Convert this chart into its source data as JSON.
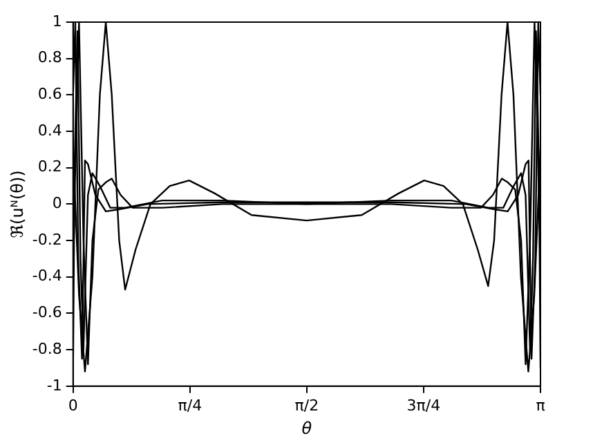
{
  "chart_data": {
    "type": "line",
    "xlabel": "θ",
    "ylabel": "ℜ(uᴺ(θ))",
    "xlim": [
      0,
      3.1416
    ],
    "ylim": [
      -1,
      1
    ],
    "xticks": [
      {
        "value": 0,
        "label": "0"
      },
      {
        "value": 0.7854,
        "label": "π/4"
      },
      {
        "value": 1.5708,
        "label": "π/2"
      },
      {
        "value": 2.3562,
        "label": "3π/4"
      },
      {
        "value": 3.1416,
        "label": "π"
      }
    ],
    "yticks": [
      -1,
      -0.8,
      -0.6,
      -0.4,
      -0.2,
      0,
      0.2,
      0.4,
      0.6,
      0.8,
      1
    ],
    "grid": false,
    "legend": false,
    "marker": "none",
    "line_style": "solid",
    "series": [
      {
        "color": "#000000",
        "x": [
          0,
          0.04,
          0.08,
          0.13,
          0.18,
          0.22,
          0.26,
          0.31,
          0.35,
          0.42,
          0.52,
          0.65,
          0.78,
          0.95,
          1.2,
          1.5708,
          1.94,
          2.19,
          2.36,
          2.49,
          2.62,
          2.72,
          2.79,
          2.83,
          2.88,
          2.92,
          2.96,
          3.01,
          3.06,
          3.1,
          3.1416
        ],
        "values": [
          0.3,
          -0.5,
          -0.92,
          -0.4,
          0.6,
          1,
          0.6,
          -0.2,
          -0.47,
          -0.25,
          0,
          0.1,
          0.13,
          0.06,
          -0.06,
          -0.09,
          -0.06,
          0.06,
          0.13,
          0.1,
          0,
          -0.25,
          -0.45,
          -0.2,
          0.6,
          1,
          0.6,
          -0.4,
          -0.92,
          -0.5,
          0.3
        ]
      },
      {
        "color": "#000000",
        "x": [
          0,
          0.015,
          0.035,
          0.06,
          0.08,
          0.1,
          0.15,
          0.22,
          0.3,
          0.5,
          1,
          1.5708,
          2.1416,
          2.6416,
          2.8416,
          2.9216,
          2.9916,
          3.0416,
          3.0616,
          3.0816,
          3.1066,
          3.1266,
          3.1416
        ],
        "values": [
          0.6,
          1,
          -0.3,
          -0.85,
          0.24,
          0.22,
          0.05,
          -0.04,
          -0.03,
          0,
          0.01,
          0.01,
          0.01,
          0,
          -0.03,
          -0.04,
          0.05,
          0.22,
          0.24,
          -0.85,
          -0.3,
          1,
          0.6
        ]
      },
      {
        "color": "#000000",
        "x": [
          0,
          0.02,
          0.04,
          0.07,
          0.1,
          0.13,
          0.17,
          0.22,
          0.26,
          0.32,
          0.4,
          0.6,
          1,
          1.5708,
          2.1416,
          2.5416,
          2.7416,
          2.8216,
          2.8816,
          2.9216,
          2.9716,
          3.0116,
          3.0416,
          3.0716,
          3.1016,
          3.1216,
          3.1416
        ],
        "values": [
          -0.4,
          0.4,
          1,
          -0.2,
          -0.88,
          -0.2,
          0.08,
          0.12,
          0.14,
          0.05,
          -0.02,
          -0.02,
          0,
          0,
          0,
          -0.02,
          -0.02,
          0.05,
          0.14,
          0.12,
          0.08,
          -0.2,
          -0.88,
          -0.2,
          1,
          0.4,
          -0.4
        ]
      },
      {
        "color": "#000000",
        "x": [
          0,
          0.01,
          0.03,
          0.05,
          0.07,
          0.1,
          0.13,
          0.18,
          0.25,
          0.35,
          0.6,
          1,
          1.5708,
          2.1416,
          2.5416,
          2.7916,
          2.8916,
          2.9616,
          3.0116,
          3.0416,
          3.0716,
          3.0916,
          3.1116,
          3.1316,
          3.1416
        ],
        "values": [
          -0.9,
          0.2,
          0.95,
          -0.3,
          -0.8,
          0.05,
          0.17,
          0.1,
          -0.02,
          -0.02,
          0.02,
          0.02,
          0,
          0.02,
          0.02,
          -0.02,
          -0.02,
          0.1,
          0.17,
          0.05,
          -0.8,
          -0.3,
          0.95,
          0.2,
          -0.9
        ]
      }
    ]
  }
}
